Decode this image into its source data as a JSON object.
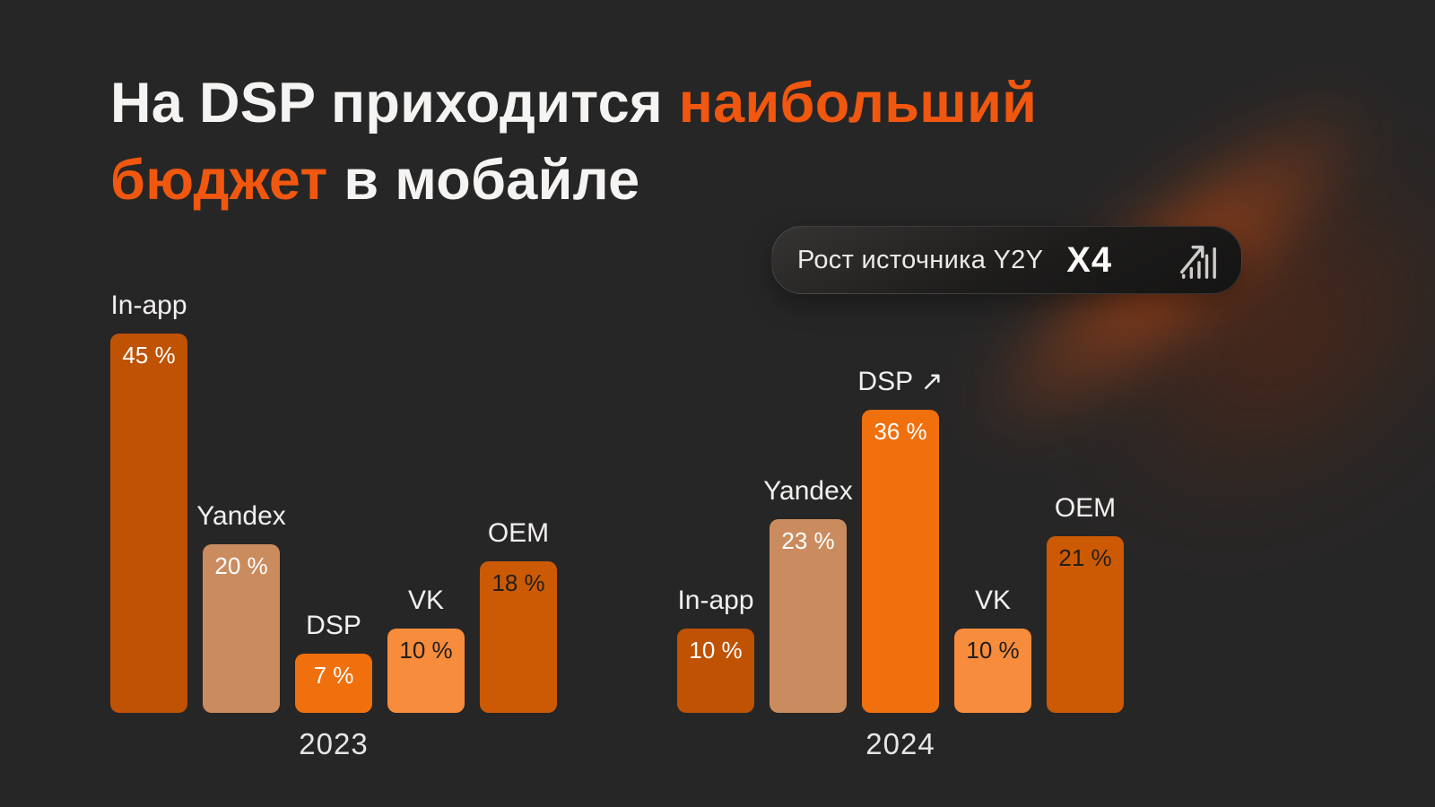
{
  "title": {
    "part1": "На DSP приходится ",
    "part2": "наибольший",
    "part3": "бюджет",
    "part4": " в мобайле"
  },
  "badge": {
    "label": "Рост источника Y2Y",
    "multiplier": "X4",
    "icon": "growth-chart-icon"
  },
  "colors": {
    "background": "#272626",
    "title_text": "#F5F4F2",
    "title_accent": "#F1570F",
    "text_light": "#F2F0EE",
    "bar_inapp": "#BF5203",
    "bar_yandex": "#CA8C5F",
    "bar_dsp": "#F1700E",
    "bar_vk": "#F68C3C",
    "bar_oem": "#CC5A04",
    "value_light": "#FFFFFF",
    "value_dark": "#221E1B",
    "swoosh_orange": "#E05210"
  },
  "chart_data": [
    {
      "type": "bar",
      "year": "2023",
      "unit": "%",
      "ylim": [
        0,
        45
      ],
      "grid": false,
      "categories": [
        "In-app",
        "Yandex",
        "DSP",
        "VK",
        "OEM"
      ],
      "values": [
        45,
        20,
        7,
        10,
        18
      ],
      "bars": [
        {
          "label": "In-app",
          "value": 45,
          "value_label": "45 %",
          "color_key": "inapp",
          "value_tone": "light"
        },
        {
          "label": "Yandex",
          "value": 20,
          "value_label": "20 %",
          "color_key": "yandex",
          "value_tone": "light"
        },
        {
          "label": "DSP",
          "value": 7,
          "value_label": "7 %",
          "color_key": "dsp",
          "value_tone": "light"
        },
        {
          "label": "VK",
          "value": 10,
          "value_label": "10 %",
          "color_key": "vk",
          "value_tone": "dark"
        },
        {
          "label": "OEM",
          "value": 18,
          "value_label": "18 %",
          "color_key": "oem",
          "value_tone": "dark"
        }
      ]
    },
    {
      "type": "bar",
      "year": "2024",
      "unit": "%",
      "ylim": [
        0,
        45
      ],
      "grid": false,
      "categories": [
        "In-app",
        "Yandex",
        "DSP",
        "VK",
        "OEM"
      ],
      "values": [
        10,
        23,
        36,
        10,
        21
      ],
      "highlight": "DSP",
      "bars": [
        {
          "label": "In-app",
          "value": 10,
          "value_label": "10 %",
          "color_key": "inapp",
          "value_tone": "light"
        },
        {
          "label": "Yandex",
          "value": 23,
          "value_label": "23 %",
          "color_key": "yandex",
          "value_tone": "light"
        },
        {
          "label": "DSP",
          "value": 36,
          "value_label": "36 %",
          "color_key": "dsp",
          "value_tone": "light",
          "suffix": "↗"
        },
        {
          "label": "VK",
          "value": 10,
          "value_label": "10 %",
          "color_key": "vk",
          "value_tone": "dark"
        },
        {
          "label": "OEM",
          "value": 21,
          "value_label": "21 %",
          "color_key": "oem",
          "value_tone": "dark"
        }
      ]
    }
  ]
}
